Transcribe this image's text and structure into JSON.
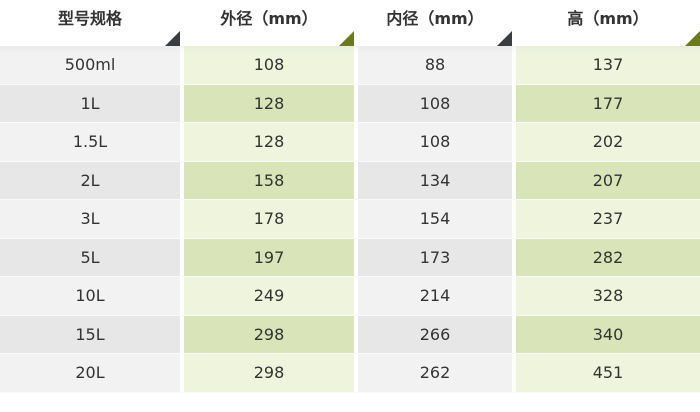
{
  "headers": [
    "型号规格",
    "外径（mm）",
    "内径（mm）",
    "高（mm）"
  ],
  "rows": [
    [
      "500ml",
      "108",
      "88",
      "137"
    ],
    [
      "1L",
      "128",
      "108",
      "177"
    ],
    [
      "1.5L",
      "128",
      "108",
      "202"
    ],
    [
      "2L",
      "158",
      "134",
      "207"
    ],
    [
      "3L",
      "178",
      "154",
      "237"
    ],
    [
      "5L",
      "197",
      "173",
      "282"
    ],
    [
      "10L",
      "249",
      "214",
      "328"
    ],
    [
      "15L",
      "298",
      "266",
      "340"
    ],
    [
      "20L",
      "298",
      "262",
      "451"
    ]
  ],
  "colors": {
    "gray_light": "#f2f2f2",
    "gray_dark": "#e7e7e7",
    "green_light": "#eef5dc",
    "green_dark": "#d9e4b8",
    "corner_dark": "#3a3d40",
    "corner_olive": "#6b7a1c"
  }
}
